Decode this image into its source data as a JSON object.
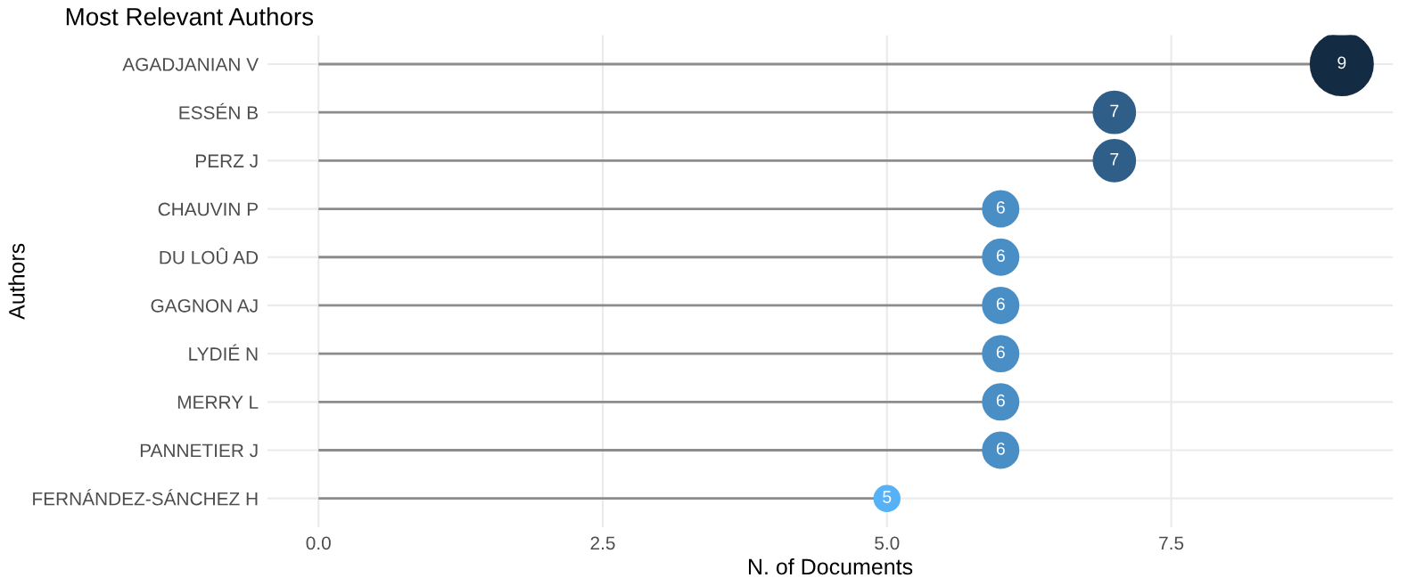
{
  "chart_data": {
    "type": "lollipop",
    "orientation": "horizontal",
    "title": "Most Relevant Authors",
    "xlabel": "N. of Documents",
    "ylabel": "Authors",
    "categories": [
      "AGADJANIAN V",
      "ESSÉN B",
      "PERZ J",
      "CHAUVIN P",
      "DU LOÛ AD",
      "GAGNON AJ",
      "LYDIÉ N",
      "MERRY L",
      "PANNETIER J",
      "FERNÁNDEZ-SÁNCHEZ H"
    ],
    "values": [
      9,
      7,
      7,
      6,
      6,
      6,
      6,
      6,
      6,
      5
    ],
    "colors": [
      "#132b43",
      "#2f5f88",
      "#2f5f88",
      "#4a8ec6",
      "#4a8ec6",
      "#4a8ec6",
      "#4a8ec6",
      "#4a8ec6",
      "#4a8ec6",
      "#56b1f7"
    ],
    "sizes": [
      1,
      0.44,
      0.44,
      0.32,
      0.32,
      0.32,
      0.32,
      0.32,
      0.32,
      0.16
    ],
    "xlim": [
      -0.45,
      9.45
    ],
    "xticks": [
      {
        "value": 0,
        "label": "0.0"
      },
      {
        "value": 2.5,
        "label": "2.5"
      },
      {
        "value": 5,
        "label": "5.0"
      },
      {
        "value": 7.5,
        "label": "7.5"
      }
    ],
    "grid": true,
    "data_labels": true
  }
}
